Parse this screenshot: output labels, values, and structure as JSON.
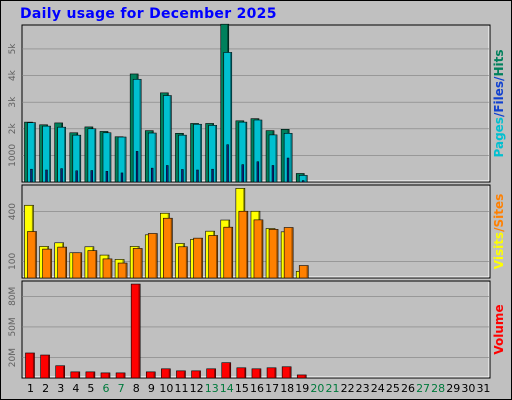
{
  "title": "Daily usage for December 2025",
  "colors": {
    "hits": "#00805c",
    "files": "#00c0d0",
    "pages": "#1040d0",
    "visits": "#ffff00",
    "sites": "#ff8000",
    "volume": "#ff0000",
    "weekend_label": "#007a3c"
  },
  "chart_data": [
    {
      "type": "bar",
      "panel": "top",
      "categories": [
        "1",
        "2",
        "3",
        "4",
        "5",
        "6",
        "7",
        "8",
        "9",
        "10",
        "11",
        "12",
        "13",
        "14",
        "15",
        "16",
        "17",
        "18",
        "19",
        "20",
        "21",
        "22",
        "23",
        "24",
        "25",
        "26",
        "27",
        "28",
        "29",
        "30",
        "31"
      ],
      "weekend_days": [
        6,
        7,
        13,
        14,
        20,
        21,
        27,
        28
      ],
      "ylim": [
        0,
        5900
      ],
      "yticks": [
        {
          "value": 1000,
          "label": "1000"
        },
        {
          "value": 2000,
          "label": "2k"
        },
        {
          "value": 3000,
          "label": "3k"
        },
        {
          "value": 4000,
          "label": "4k"
        },
        {
          "value": 5000,
          "label": "5k"
        }
      ],
      "right_label": [
        {
          "text": "Pages",
          "color_key": "files"
        },
        {
          "text": "/",
          "color_key": "pages"
        },
        {
          "text": "Files",
          "color_key": "pages"
        },
        {
          "text": "/",
          "color_key": "pages"
        },
        {
          "text": "Hits",
          "color_key": "hits"
        }
      ],
      "series": [
        {
          "name": "Hits",
          "values": [
            2250,
            2150,
            2220,
            1850,
            2070,
            1900,
            1700,
            4060,
            1930,
            3350,
            1830,
            2200,
            2200,
            5930,
            2300,
            2380,
            1930,
            1980,
            320,
            0,
            0,
            0,
            0,
            0,
            0,
            0,
            0,
            0,
            0,
            0,
            0
          ]
        },
        {
          "name": "Files",
          "values": [
            2230,
            2100,
            2060,
            1760,
            2000,
            1850,
            1690,
            3860,
            1840,
            3250,
            1760,
            2170,
            2130,
            4870,
            2250,
            2330,
            1770,
            1830,
            250,
            0,
            0,
            0,
            0,
            0,
            0,
            0,
            0,
            0,
            0,
            0,
            0
          ]
        },
        {
          "name": "Pages",
          "values": [
            480,
            450,
            500,
            420,
            430,
            400,
            340,
            1150,
            520,
            620,
            470,
            450,
            480,
            1400,
            650,
            760,
            620,
            900,
            50,
            0,
            0,
            0,
            0,
            0,
            0,
            0,
            0,
            0,
            0,
            0,
            0
          ]
        }
      ]
    },
    {
      "type": "bar",
      "panel": "middle",
      "ylim": [
        0,
        560
      ],
      "yticks": [
        {
          "value": 100,
          "label": "100"
        },
        {
          "value": 400,
          "label": "400"
        }
      ],
      "right_label": [
        {
          "text": "Visits",
          "color_key": "visits"
        },
        {
          "text": "/",
          "color_key": "sites"
        },
        {
          "text": "Sites",
          "color_key": "sites"
        }
      ],
      "series": [
        {
          "name": "Visits",
          "values": [
            438,
            190,
            212,
            152,
            188,
            138,
            112,
            190,
            260,
            390,
            208,
            233,
            282,
            349,
            540,
            402,
            298,
            278,
            40,
            0,
            0,
            0,
            0,
            0,
            0,
            0,
            0,
            0,
            0,
            0,
            0
          ]
        },
        {
          "name": "Sites",
          "values": [
            280,
            174,
            186,
            152,
            165,
            115,
            90,
            178,
            268,
            360,
            188,
            240,
            256,
            306,
            402,
            350,
            293,
            304,
            75,
            0,
            0,
            0,
            0,
            0,
            0,
            0,
            0,
            0,
            0,
            0,
            0
          ]
        }
      ]
    },
    {
      "type": "bar",
      "panel": "bottom",
      "ylim": [
        0,
        95
      ],
      "yticks": [
        {
          "value": 20,
          "label": "20M"
        },
        {
          "value": 50,
          "label": "50M"
        },
        {
          "value": 80,
          "label": "80M"
        }
      ],
      "right_label": [
        {
          "text": "Volume",
          "color_key": "volume"
        }
      ],
      "series": [
        {
          "name": "Volume",
          "values": [
            24.5,
            22.5,
            12,
            6,
            6,
            5,
            5,
            92,
            6,
            9,
            7,
            7,
            9,
            15,
            10,
            9,
            10,
            11,
            3,
            0,
            0,
            0,
            0,
            0,
            0,
            0,
            0,
            0,
            0,
            0,
            0
          ]
        }
      ]
    }
  ]
}
